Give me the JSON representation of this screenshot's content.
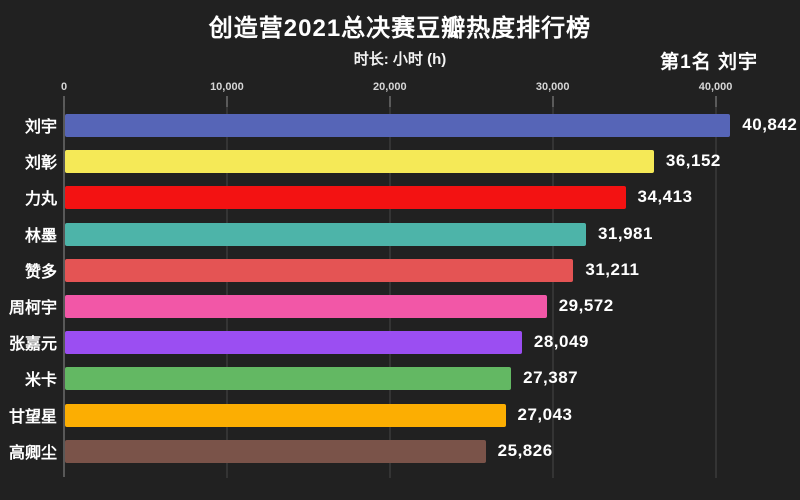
{
  "title": "创造营2021总决赛豆瓣热度排行榜",
  "subtitle": "时长: 小时 (h)",
  "rank_badge": "第1名 刘宇",
  "chart_data": {
    "type": "bar",
    "orientation": "horizontal",
    "title": "创造营2021总决赛豆瓣热度排行榜",
    "xlabel": "时长: 小时 (h)",
    "categories": [
      "刘宇",
      "刘彰",
      "力丸",
      "林墨",
      "赞多",
      "周柯宇",
      "张嘉元",
      "米卡",
      "甘望星",
      "高卿尘"
    ],
    "values": [
      40842,
      36152,
      34413,
      31981,
      31211,
      29572,
      28049,
      27387,
      27043,
      25826
    ],
    "value_labels": [
      "40,842",
      "36,152",
      "34,413",
      "31,981",
      "31,211",
      "29,572",
      "28,049",
      "27,387",
      "27,043",
      "25,826"
    ],
    "bar_colors": [
      "#5665b7",
      "#f5e957",
      "#f31212",
      "#4db4a9",
      "#e45454",
      "#f257a7",
      "#9b4ef2",
      "#63b863",
      "#fcae02",
      "#7a5349"
    ],
    "axis": {
      "max": 41500,
      "ticks": [
        {
          "label": "0",
          "value": 0
        },
        {
          "label": "10,000",
          "value": 10000
        },
        {
          "label": "20,000",
          "value": 20000
        },
        {
          "label": "30,000",
          "value": 30000
        },
        {
          "label": "40,000",
          "value": 40000
        }
      ]
    },
    "grid": true,
    "legend": false,
    "background": "#212121",
    "text_color": "#ffffff"
  }
}
